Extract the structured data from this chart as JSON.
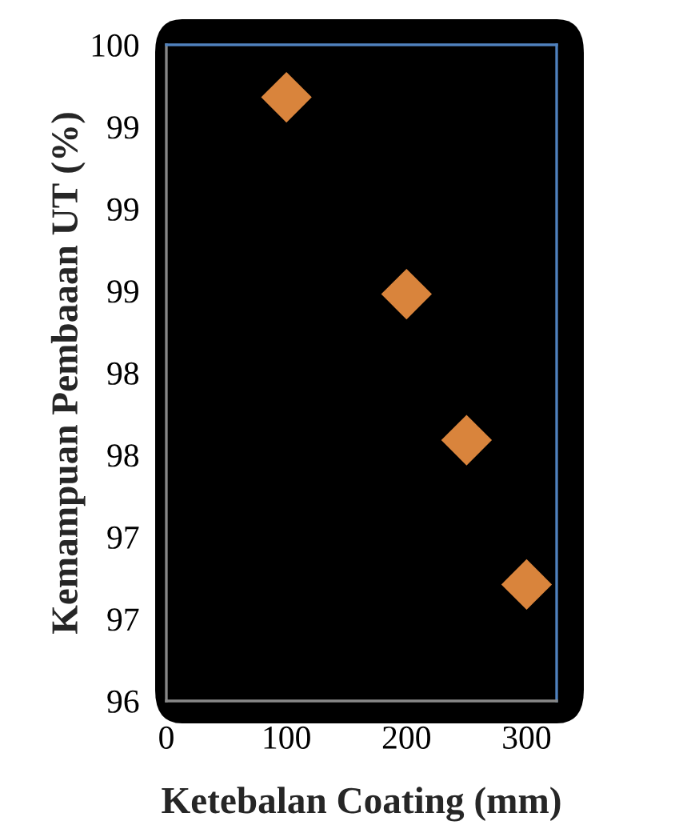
{
  "chart_data": {
    "type": "scatter",
    "xlabel": "Ketebalan Coating (mm)",
    "ylabel": "Kemampuan Pembaaan UT (%)",
    "x": [
      100,
      200,
      250,
      300
    ],
    "series": [
      {
        "color": "#d9843c",
        "values": [
          99.68,
          98.48,
          97.59,
          96.71
        ]
      }
    ],
    "marker": "diamond",
    "xlim": [
      0,
      325
    ],
    "xticks": [
      0,
      100,
      200,
      300
    ],
    "ylim": [
      96,
      100
    ],
    "yticks": [
      96,
      {
        "value": 96.5,
        "label": "97"
      },
      97,
      {
        "value": 97.5,
        "label": "98"
      },
      98,
      {
        "value": 98.5,
        "label": "99"
      },
      99,
      {
        "value": 99.5,
        "label": "99"
      },
      100
    ],
    "grid": false,
    "legend": false
  }
}
